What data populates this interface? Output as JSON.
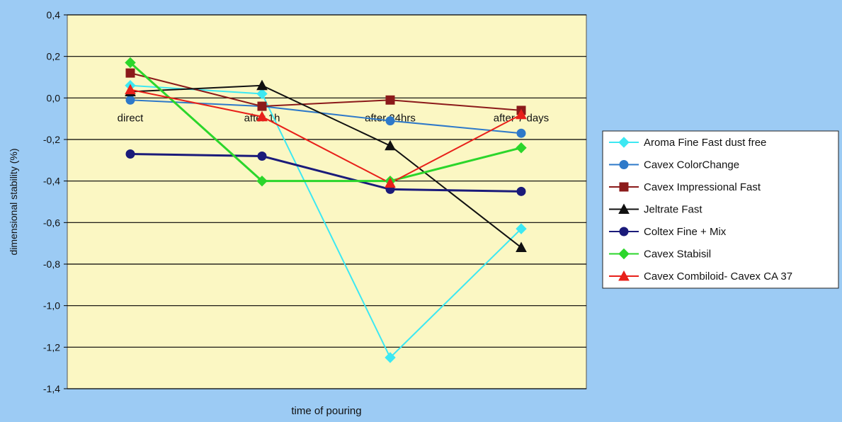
{
  "chart_data": {
    "type": "line",
    "title": "",
    "xlabel": "time of pouring",
    "ylabel": "dimensional stability (%)",
    "categories": [
      "direct",
      "after 1h",
      "after 24hrs",
      "after 7 days"
    ],
    "ylim": [
      -1.4,
      0.4
    ],
    "yticks": [
      0.4,
      0.2,
      0.0,
      -0.2,
      -0.4,
      -0.6,
      -0.8,
      -1.0,
      -1.2,
      -1.4
    ],
    "ytick_labels": [
      "0,4",
      "0,2",
      "0,0",
      "-0,2",
      "-0,4",
      "-0,6",
      "-0,8",
      "-1,0",
      "-1,2",
      "-1,4"
    ],
    "grid": true,
    "legend_position": "right",
    "plot_background": "#fbf7c3",
    "series": [
      {
        "name": "Aroma Fine Fast dust free",
        "color": "#3de8f2",
        "marker": "diamond",
        "values": [
          0.06,
          0.02,
          -1.25,
          -0.63
        ]
      },
      {
        "name": "Cavex ColorChange",
        "color": "#2e79c9",
        "marker": "circle",
        "values": [
          -0.01,
          -0.04,
          -0.11,
          -0.17
        ]
      },
      {
        "name": "Cavex Impressional Fast",
        "color": "#8b1a1a",
        "marker": "square",
        "values": [
          0.12,
          -0.04,
          -0.01,
          -0.06
        ]
      },
      {
        "name": "Jeltrate Fast",
        "color": "#111111",
        "marker": "triangle",
        "values": [
          0.03,
          0.06,
          -0.23,
          -0.72
        ]
      },
      {
        "name": "Coltex Fine + Mix",
        "color": "#1b1b7a",
        "marker": "circle",
        "values": [
          -0.27,
          -0.28,
          -0.44,
          -0.45
        ]
      },
      {
        "name": "Cavex Stabisil",
        "color": "#2bd62b",
        "marker": "diamond",
        "values": [
          0.17,
          -0.4,
          -0.4,
          -0.24
        ]
      },
      {
        "name": "Cavex Combiloid- Cavex CA 37",
        "color": "#e8201a",
        "marker": "triangle",
        "values": [
          0.04,
          -0.09,
          -0.41,
          -0.08
        ]
      }
    ]
  }
}
